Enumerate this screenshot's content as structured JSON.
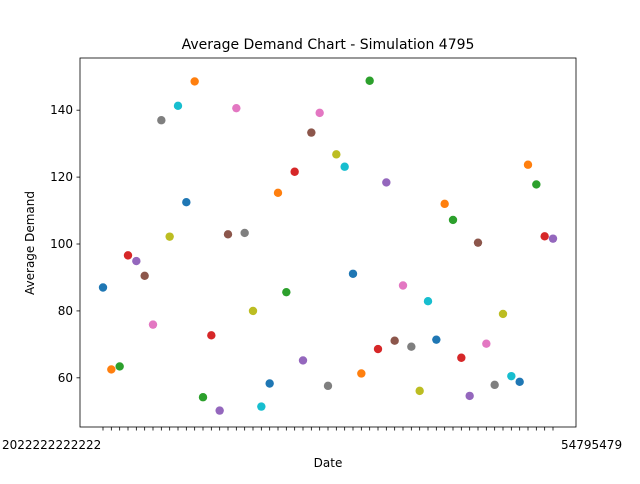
{
  "chart_data": {
    "type": "scatter",
    "title": "Average Demand Chart - Simulation 4795",
    "xlabel": "Date",
    "ylabel": "Average Demand",
    "ylim": [
      45.3,
      155.6
    ],
    "yticks": [
      60,
      80,
      100,
      120,
      140
    ],
    "grid": false,
    "legend": "none",
    "palette": [
      "#1f77b4",
      "#ff7f0e",
      "#2ca02c",
      "#d62728",
      "#9467bd",
      "#8c564b",
      "#e377c2",
      "#7f7f7f",
      "#bcbd22",
      "#17becf"
    ],
    "x_tick_note": "55 overlapping date tick labels (illegible); visible tail fragments",
    "x_tick_visible_left": "2022222222222",
    "x_tick_visible_right": "54795479",
    "values": [
      87.0,
      62.5,
      63.4,
      96.6,
      94.9,
      90.5,
      75.9,
      137.0,
      102.2,
      141.3,
      112.5,
      148.6,
      54.2,
      72.7,
      50.2,
      102.9,
      140.6,
      103.3,
      80.0,
      51.4,
      58.3,
      115.3,
      85.6,
      121.6,
      65.2,
      133.3,
      139.2,
      57.6,
      126.8,
      123.1,
      91.1,
      61.3,
      148.8,
      68.6,
      118.4,
      71.1,
      87.6,
      69.3,
      56.1,
      82.9,
      71.4,
      112.0,
      107.2,
      66.0,
      54.6,
      100.4,
      70.2,
      57.9,
      79.1,
      60.5,
      58.8,
      123.7,
      117.8,
      102.3,
      101.6
    ]
  }
}
